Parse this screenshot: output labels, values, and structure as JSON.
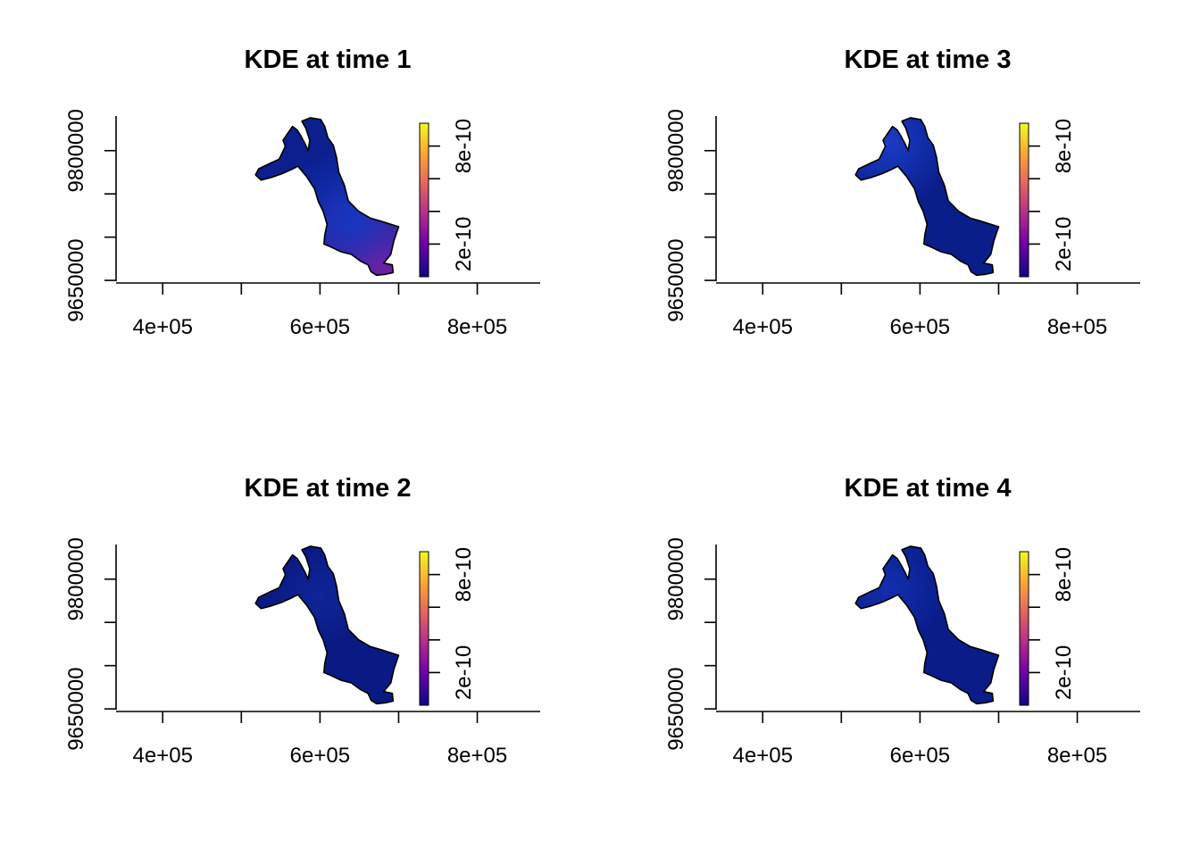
{
  "chart_data": [
    {
      "type": "heatmap",
      "title": "KDE at time 1",
      "xlim": [
        360000,
        880000
      ],
      "ylim": [
        9647000,
        9840000
      ],
      "x_ticks": [
        400000,
        500000,
        600000,
        700000,
        800000
      ],
      "x_tick_labels": [
        "4e+05",
        "",
        "6e+05",
        "",
        "8e+05"
      ],
      "y_ticks": [
        9650000,
        9700000,
        9750000,
        9800000
      ],
      "y_tick_labels": [
        "9650000",
        "",
        "",
        "9800000"
      ],
      "legend": {
        "range": [
          0,
          9.4e-10
        ],
        "ticks": [
          2e-10,
          4e-10,
          6e-10,
          8e-10
        ],
        "tick_labels": [
          "2e-10",
          "",
          "",
          "8e-10"
        ],
        "palette": [
          "#0D0887",
          "#6A00A8",
          "#B12A90",
          "#E16462",
          "#FCA636",
          "#F0F921"
        ]
      },
      "color_base": "#0b1f8e",
      "hotspots": [
        {
          "x": 675000,
          "y": 9670000,
          "color": "#8a1a9a",
          "strength": 0.9
        },
        {
          "x": 640000,
          "y": 9720000,
          "color": "#1437c2",
          "strength": 0.7
        }
      ]
    },
    {
      "type": "heatmap",
      "title": "KDE at time 3",
      "xlim": [
        360000,
        880000
      ],
      "ylim": [
        9647000,
        9840000
      ],
      "x_ticks": [
        400000,
        500000,
        600000,
        700000,
        800000
      ],
      "x_tick_labels": [
        "4e+05",
        "",
        "6e+05",
        "",
        "8e+05"
      ],
      "y_ticks": [
        9650000,
        9700000,
        9750000,
        9800000
      ],
      "y_tick_labels": [
        "9650000",
        "",
        "",
        "9800000"
      ],
      "legend": {
        "range": [
          0,
          9.4e-10
        ],
        "ticks": [
          2e-10,
          4e-10,
          6e-10,
          8e-10
        ],
        "tick_labels": [
          "2e-10",
          "",
          "",
          "8e-10"
        ],
        "palette": [
          "#0D0887",
          "#6A00A8",
          "#B12A90",
          "#E16462",
          "#FCA636",
          "#F0F921"
        ]
      },
      "color_base": "#0a1e8a",
      "hotspots": [
        {
          "x": 560000,
          "y": 9810000,
          "color": "#1a3cc8",
          "strength": 0.6
        }
      ]
    },
    {
      "type": "heatmap",
      "title": "KDE at time 2",
      "xlim": [
        360000,
        880000
      ],
      "ylim": [
        9647000,
        9840000
      ],
      "x_ticks": [
        400000,
        500000,
        600000,
        700000,
        800000
      ],
      "x_tick_labels": [
        "4e+05",
        "",
        "6e+05",
        "",
        "8e+05"
      ],
      "y_ticks": [
        9650000,
        9700000,
        9750000,
        9800000
      ],
      "y_tick_labels": [
        "9650000",
        "",
        "",
        "9800000"
      ],
      "legend": {
        "range": [
          0,
          9.4e-10
        ],
        "ticks": [
          2e-10,
          4e-10,
          6e-10,
          8e-10
        ],
        "tick_labels": [
          "2e-10",
          "",
          "",
          "8e-10"
        ],
        "palette": [
          "#0D0887",
          "#6A00A8",
          "#B12A90",
          "#E16462",
          "#FCA636",
          "#F0F921"
        ]
      },
      "color_base": "#0a1a84",
      "hotspots": [
        {
          "x": 600000,
          "y": 9780000,
          "color": "#0f2698",
          "strength": 0.4
        }
      ]
    },
    {
      "type": "heatmap",
      "title": "KDE at time 4",
      "xlim": [
        360000,
        880000
      ],
      "ylim": [
        9647000,
        9840000
      ],
      "x_ticks": [
        400000,
        500000,
        600000,
        700000,
        800000
      ],
      "x_tick_labels": [
        "4e+05",
        "",
        "6e+05",
        "",
        "8e+05"
      ],
      "y_ticks": [
        9650000,
        9700000,
        9750000,
        9800000
      ],
      "y_tick_labels": [
        "9650000",
        "",
        "",
        "9800000"
      ],
      "legend": {
        "range": [
          0,
          9.4e-10
        ],
        "ticks": [
          2e-10,
          4e-10,
          6e-10,
          8e-10
        ],
        "tick_labels": [
          "2e-10",
          "",
          "",
          "8e-10"
        ],
        "palette": [
          "#0D0887",
          "#6A00A8",
          "#B12A90",
          "#E16462",
          "#FCA636",
          "#F0F921"
        ]
      },
      "color_base": "#0a1c88",
      "hotspots": [
        {
          "x": 560000,
          "y": 9790000,
          "color": "#122fb0",
          "strength": 0.5
        }
      ]
    }
  ]
}
